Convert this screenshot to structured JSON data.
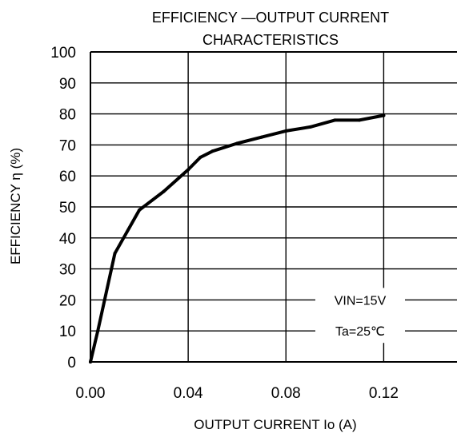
{
  "chart_data": {
    "type": "line",
    "title_lines": [
      "EFFICIENCY  —OUTPUT  CURRENT",
      "CHARACTERISTICS"
    ],
    "xlabel": "OUTPUT  CURRENT   Io (A)",
    "ylabel": "EFFICIENCY   η (%)",
    "xlim": [
      0,
      0.15
    ],
    "ylim": [
      0,
      100
    ],
    "x_ticks": [
      {
        "value": 0,
        "label": "0.00"
      },
      {
        "value": 0.04,
        "label": "0.04"
      },
      {
        "value": 0.08,
        "label": "0.08"
      },
      {
        "value": 0.12,
        "label": "0.12"
      }
    ],
    "y_ticks": [
      {
        "value": 0,
        "label": "0"
      },
      {
        "value": 10,
        "label": "10"
      },
      {
        "value": 20,
        "label": "20"
      },
      {
        "value": 30,
        "label": "30"
      },
      {
        "value": 40,
        "label": "40"
      },
      {
        "value": 50,
        "label": "50"
      },
      {
        "value": 60,
        "label": "60"
      },
      {
        "value": 70,
        "label": "70"
      },
      {
        "value": 80,
        "label": "80"
      },
      {
        "value": 90,
        "label": "90"
      },
      {
        "value": 100,
        "label": "100"
      }
    ],
    "x_gridlines": [
      0.04,
      0.08,
      0.12
    ],
    "grid": true,
    "series": [
      {
        "x": [
          0,
          0.003,
          0.01,
          0.02,
          0.03,
          0.04,
          0.045,
          0.05,
          0.06,
          0.07,
          0.08,
          0.09,
          0.1,
          0.11,
          0.12
        ],
        "y": [
          0,
          10,
          35,
          49,
          55,
          62,
          66,
          68,
          70.5,
          72.5,
          74.5,
          75.8,
          78,
          78,
          79.5
        ]
      }
    ],
    "annotations": [
      "VIN=15V",
      "Ta=25℃"
    ],
    "annotation_placement": "bottom-right"
  },
  "style": {
    "line_color": "#000000",
    "axis_color": "#000000",
    "grid_color": "#000000",
    "background": "#ffffff"
  }
}
